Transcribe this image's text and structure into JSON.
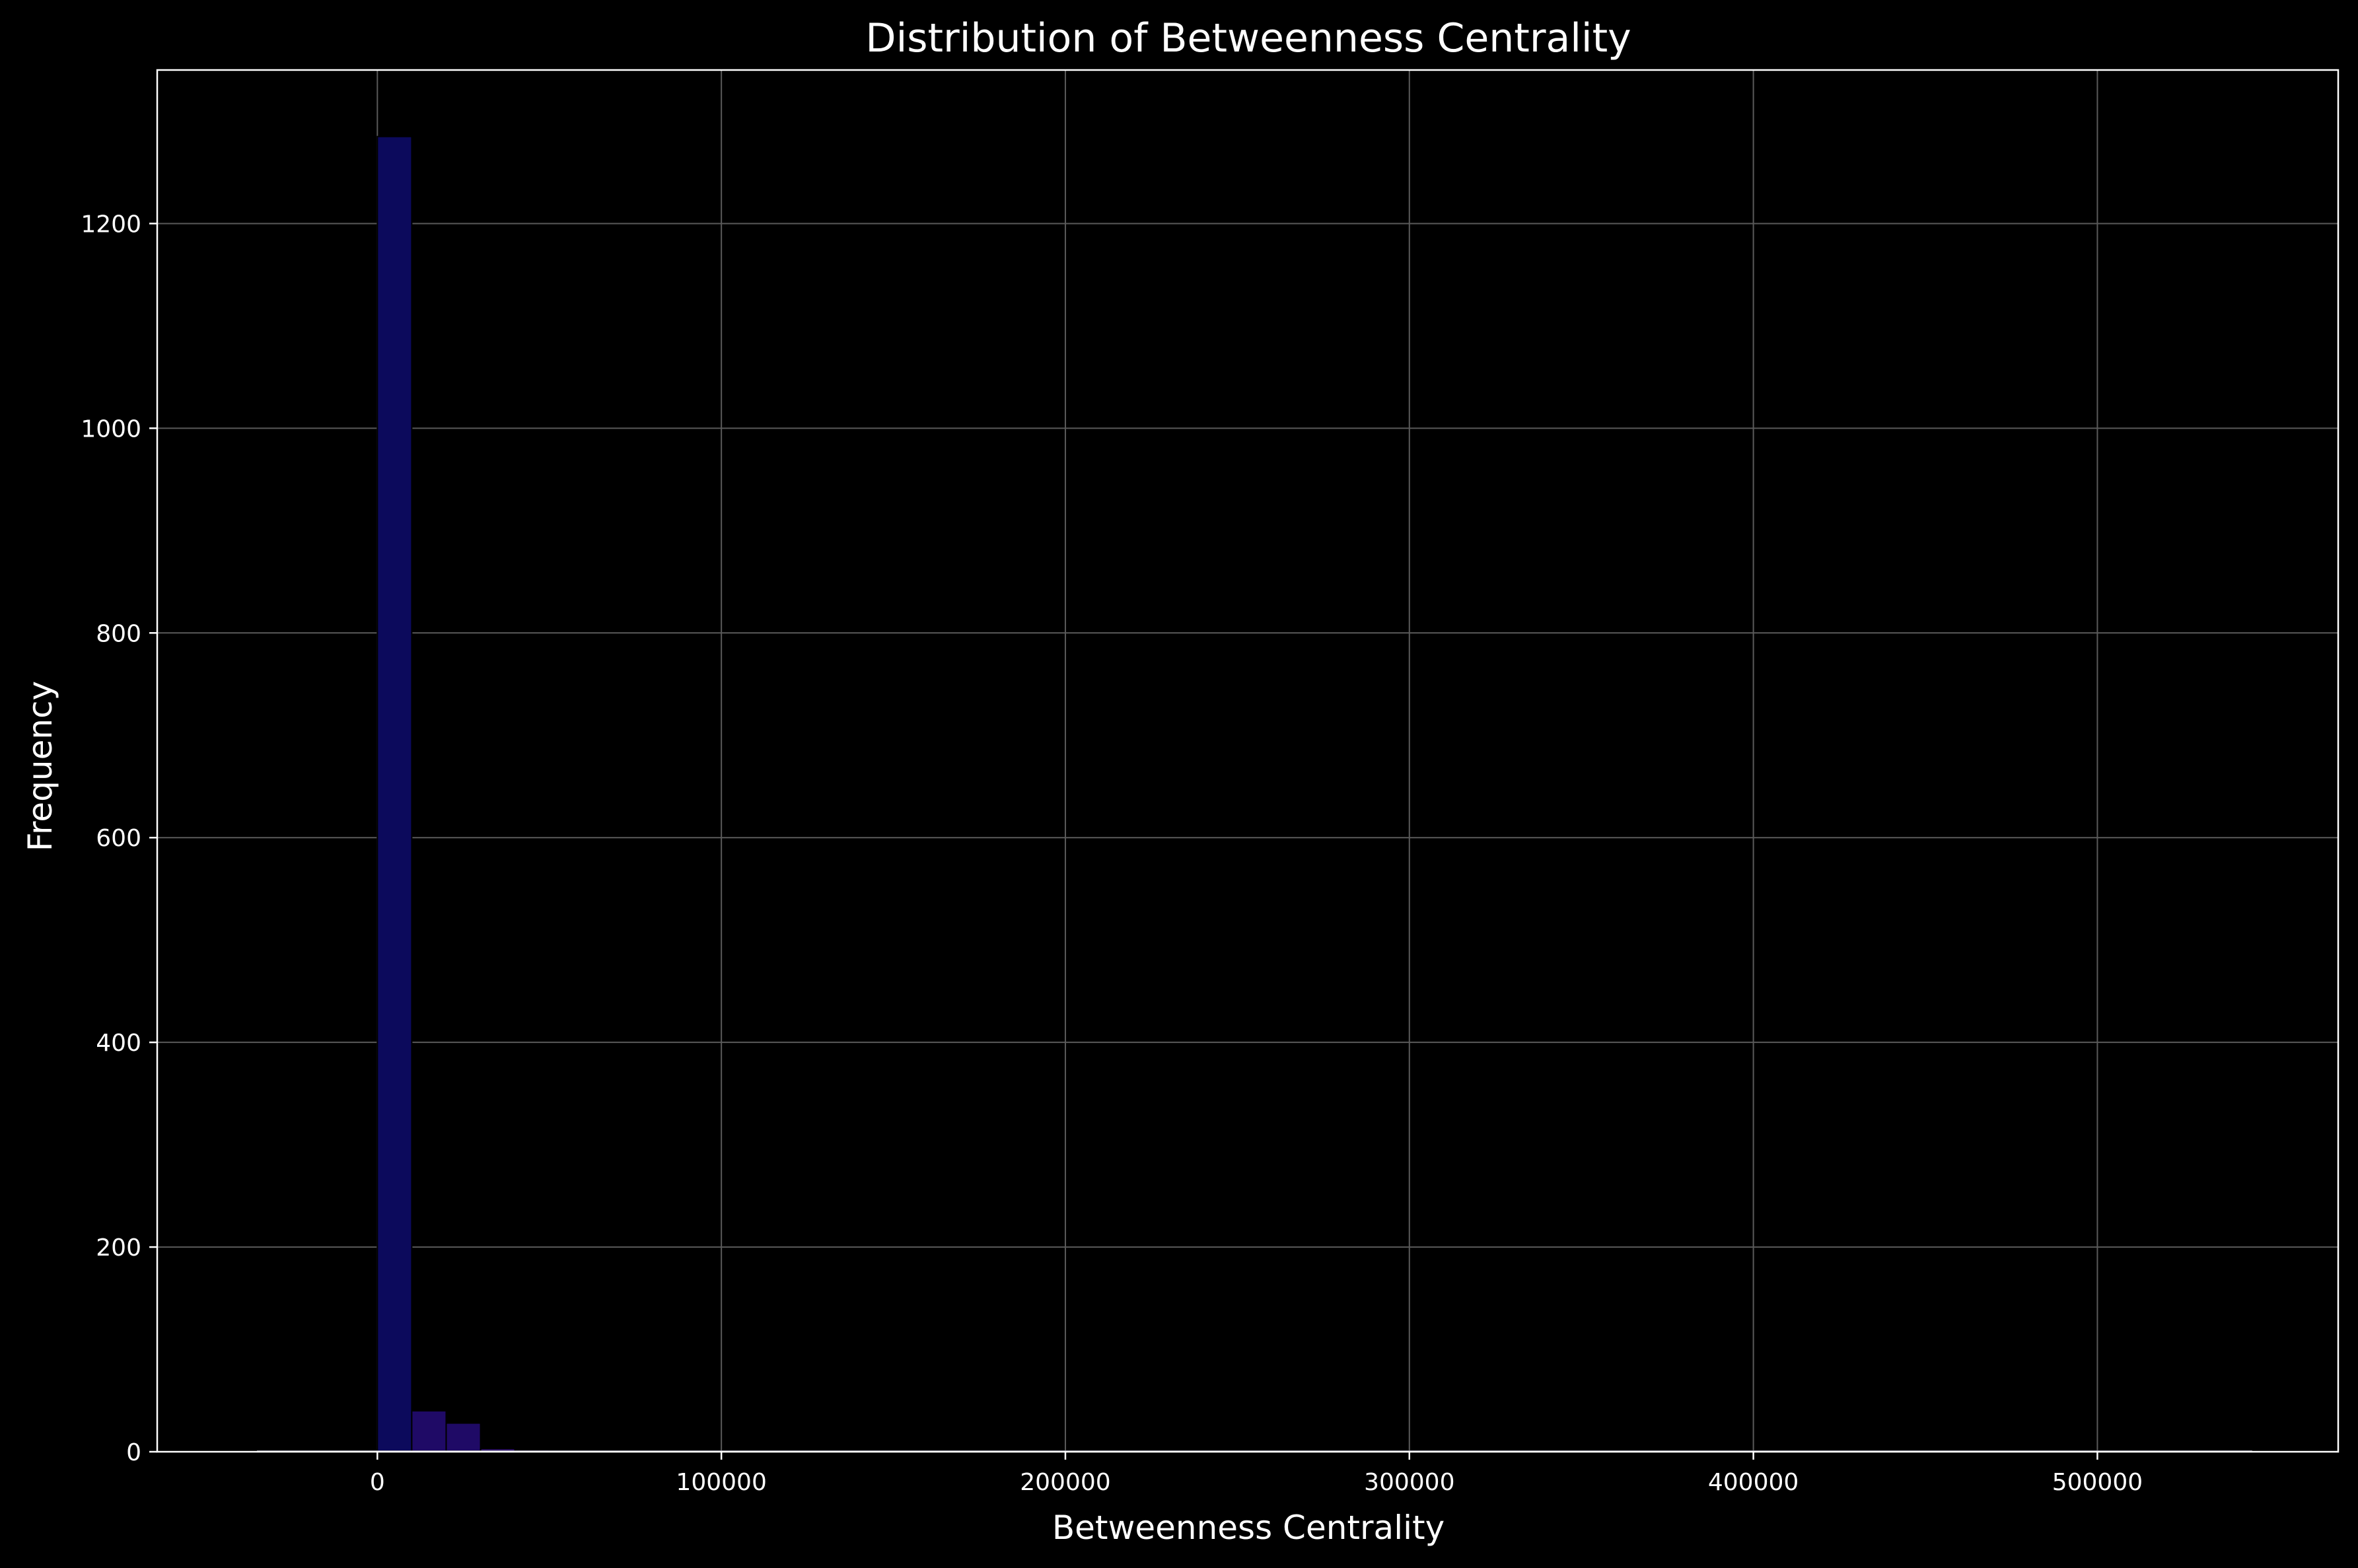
{
  "chart_data": {
    "type": "bar",
    "title": "Distribution of Betweenness Centrality",
    "xlabel": "Betweenness Centrality",
    "ylabel": "Frequency",
    "xlim": [
      -64000,
      570000
    ],
    "ylim": [
      0,
      1350
    ],
    "xticks": [
      0,
      100000,
      200000,
      300000,
      400000,
      500000
    ],
    "xtick_labels": [
      "0",
      "100000",
      "200000",
      "300000",
      "400000",
      "500000"
    ],
    "yticks": [
      0,
      200,
      400,
      600,
      800,
      1000,
      1200
    ],
    "ytick_labels": [
      "0",
      "200",
      "400",
      "600",
      "800",
      "1000",
      "1200"
    ],
    "grid": true,
    "bin_width": 10000,
    "bins": [
      {
        "start": -35000,
        "end": -25000,
        "count": 1
      },
      {
        "start": 0,
        "end": 10000,
        "count": 1285
      },
      {
        "start": 10000,
        "end": 20000,
        "count": 40
      },
      {
        "start": 20000,
        "end": 30000,
        "count": 28
      },
      {
        "start": 30000,
        "end": 40000,
        "count": 3
      },
      {
        "start": 40000,
        "end": 50000,
        "count": 2
      },
      {
        "start": 50000,
        "end": 60000,
        "count": 1
      },
      {
        "start": 535000,
        "end": 545000,
        "count": 1
      }
    ],
    "colors": {
      "background": "#000000",
      "axes": "#ffffff",
      "grid": "#5a5a5a",
      "bar_main": "#0c0a5c",
      "bar_secondary": "#1f0a66",
      "bar_tail": "#3a1a80",
      "bar_edge": "#000000"
    }
  }
}
